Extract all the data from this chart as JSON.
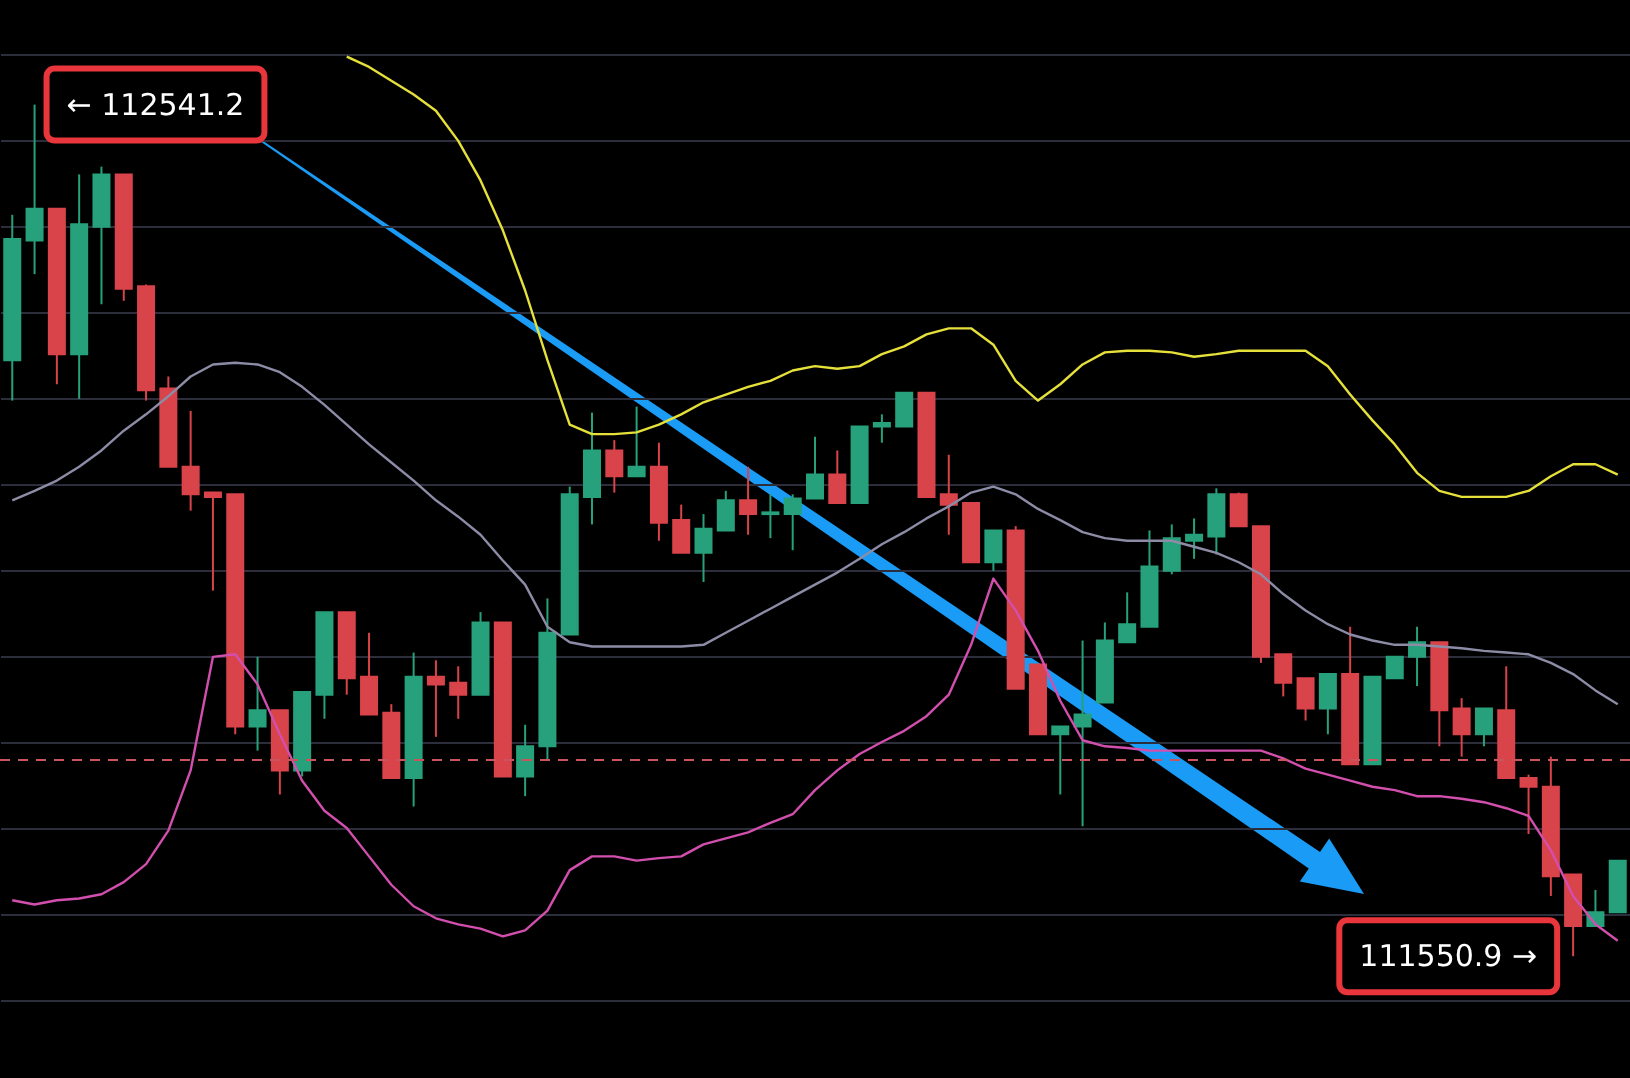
{
  "chart_data": {
    "type": "candlestick",
    "categories": [
      null,
      null,
      null,
      null,
      null,
      null,
      null,
      null,
      null,
      null,
      null,
      null,
      null,
      null,
      null,
      null,
      null,
      null,
      null,
      null,
      null,
      null,
      null,
      null,
      null,
      null,
      null,
      null,
      null,
      null,
      null,
      null,
      null,
      null,
      null,
      null,
      null,
      null,
      null,
      null,
      null,
      null,
      null,
      null,
      null,
      null,
      null,
      null,
      null,
      null,
      null,
      null,
      null,
      null,
      null,
      null,
      null,
      null,
      null,
      null,
      null,
      null,
      null,
      null,
      null,
      null,
      null,
      null,
      null,
      null,
      null,
      null,
      null
    ],
    "ohlc": [
      [
        112244,
        112413,
        112197,
        112385
      ],
      [
        112383,
        112541.2,
        112344,
        112420
      ],
      [
        112420,
        112420,
        112216,
        112251
      ],
      [
        112251,
        112460,
        112199,
        112402
      ],
      [
        112399,
        112469,
        112309,
        112460
      ],
      [
        112460,
        112460,
        112313,
        112327
      ],
      [
        112330,
        112332,
        112197,
        112209
      ],
      [
        112211,
        112225,
        112120,
        112120
      ],
      [
        112120,
        112185,
        112069,
        112088
      ],
      [
        112090,
        112090,
        111976,
        112085
      ],
      [
        112088,
        112088,
        111809,
        111818
      ],
      [
        111818,
        111899,
        111790,
        111837
      ],
      [
        111837,
        111837,
        111739,
        111767
      ],
      [
        111767,
        111858,
        111760,
        111858
      ],
      [
        111855,
        111951,
        111827,
        111951
      ],
      [
        111951,
        111951,
        111855,
        111874
      ],
      [
        111876,
        111927,
        111832,
        111832
      ],
      [
        111834,
        111844,
        111758,
        111758
      ],
      [
        111758,
        111904,
        111725,
        111876
      ],
      [
        111876,
        111895,
        111806,
        111867
      ],
      [
        111869,
        111888,
        111827,
        111855
      ],
      [
        111855,
        111951,
        111855,
        111939
      ],
      [
        111939,
        111939,
        111760,
        111760
      ],
      [
        111760,
        111820,
        111737,
        111795
      ],
      [
        111795,
        111967,
        111779,
        111927
      ],
      [
        111925,
        112097,
        111925,
        112088
      ],
      [
        112085,
        112183,
        112053,
        112139
      ],
      [
        112139,
        112151,
        112090,
        112109
      ],
      [
        112109,
        112190,
        112109,
        112120
      ],
      [
        112120,
        112148,
        112034,
        112055
      ],
      [
        112058,
        112076,
        112020,
        112020
      ],
      [
        112020,
        112065,
        111986,
        112048
      ],
      [
        112046,
        112092,
        112046,
        112081
      ],
      [
        112081,
        112120,
        112041,
        112065
      ],
      [
        112065,
        112088,
        112037,
        112067
      ],
      [
        112065,
        112088,
        112023,
        112083
      ],
      [
        112083,
        112155,
        112083,
        112111
      ],
      [
        112111,
        112139,
        112078,
        112078
      ],
      [
        112078,
        112167,
        112078,
        112167
      ],
      [
        112167,
        112181,
        112148,
        112171
      ],
      [
        112167,
        112206,
        112167,
        112206
      ],
      [
        112206,
        112206,
        112085,
        112085
      ],
      [
        112088,
        112134,
        112041,
        112076
      ],
      [
        112078,
        112078,
        112009,
        112009
      ],
      [
        112009,
        112046,
        111999,
        112046
      ],
      [
        112046,
        112051,
        111862,
        111862
      ],
      [
        111890,
        111890,
        111809,
        111809
      ],
      [
        111809,
        111818,
        111739,
        111818
      ],
      [
        111818,
        111918,
        111702,
        111832
      ],
      [
        111846,
        111939,
        111846,
        111918
      ],
      [
        111916,
        111974,
        111916,
        111937
      ],
      [
        111934,
        112046,
        111934,
        112004
      ],
      [
        111999,
        112053,
        111995,
        112037
      ],
      [
        112034,
        112060,
        112013,
        112041
      ],
      [
        112039,
        112095,
        112018,
        112088
      ],
      [
        112088,
        112090,
        112051,
        112051
      ],
      [
        112051,
        112051,
        111892,
        111899
      ],
      [
        111902,
        111902,
        111853,
        111869
      ],
      [
        111874,
        111874,
        111825,
        111839
      ],
      [
        111839,
        111879,
        111809,
        111879
      ],
      [
        111879,
        111934,
        111774,
        111774
      ],
      [
        111774,
        111876,
        111774,
        111876
      ],
      [
        111874,
        111899,
        111874,
        111899
      ],
      [
        111899,
        111934,
        111865,
        111916
      ],
      [
        111916,
        111916,
        111795,
        111837
      ],
      [
        111839,
        111851,
        111783,
        111809
      ],
      [
        111809,
        111839,
        111795,
        111839
      ],
      [
        111837,
        111888,
        111758,
        111758
      ],
      [
        111758,
        111762,
        111693,
        111748
      ],
      [
        111748,
        111783,
        111621,
        111644
      ],
      [
        111646,
        111646,
        111550.9,
        111586
      ],
      [
        111586,
        111628,
        111586,
        111602
      ],
      [
        111602,
        111662,
        111602,
        111662
      ]
    ],
    "series": [
      {
        "type": "line",
        "color": "#e6e03a",
        "values": [
          null,
          null,
          null,
          null,
          null,
          null,
          null,
          null,
          null,
          null,
          null,
          null,
          null,
          null,
          null,
          112597,
          112585,
          112569,
          112553,
          112534,
          112499,
          112453,
          112395,
          112325,
          112244,
          112169,
          112158,
          112158,
          112160,
          112169,
          112181,
          112195,
          112204,
          112213,
          112220,
          112232,
          112237,
          112234,
          112237,
          112251,
          112260,
          112274,
          112281,
          112281,
          112262,
          112220,
          112197,
          112216,
          112239,
          112253,
          112255,
          112255,
          112253,
          112248,
          112251,
          112255,
          112255,
          112255,
          112255,
          112237,
          112204,
          112174,
          112146,
          112113,
          112092,
          112085,
          112085,
          112085,
          112092,
          112109,
          112123,
          112123,
          112111
        ]
      },
      {
        "type": "line",
        "color": "#8c8ca6",
        "values": [
          112081,
          112092,
          112104,
          112120,
          112139,
          112162,
          112181,
          112202,
          112225,
          112239,
          112241,
          112239,
          112230,
          112213,
          112192,
          112169,
          112146,
          112125,
          112104,
          112081,
          112062,
          112041,
          112011,
          111983,
          111934,
          111916,
          111911,
          111911,
          111911,
          111911,
          111911,
          111913,
          111927,
          111941,
          111955,
          111969,
          111983,
          111997,
          112013,
          112030,
          112044,
          112060,
          112074,
          112090,
          112097,
          112088,
          112071,
          112058,
          112044,
          112037,
          112034,
          112034,
          112034,
          112027,
          112020,
          112009,
          111995,
          111972,
          111953,
          111937,
          111925,
          111918,
          111913,
          111913,
          111911,
          111909,
          111906,
          111904,
          111902,
          111892,
          111879,
          111860,
          111844
        ]
      },
      {
        "type": "line",
        "color": "#d24fae",
        "values": [
          111616,
          111611,
          111616,
          111618,
          111623,
          111637,
          111658,
          111697,
          111767,
          111899,
          111902,
          111867,
          111809,
          111755,
          111720,
          111700,
          111667,
          111634,
          111609,
          111595,
          111588,
          111583,
          111574,
          111581,
          111604,
          111651,
          111667,
          111667,
          111662,
          111665,
          111667,
          111681,
          111688,
          111695,
          111706,
          111716,
          111744,
          111767,
          111786,
          111800,
          111813,
          111830,
          111855,
          111913,
          111990,
          111953,
          111906,
          111848,
          111802,
          111795,
          111793,
          111790,
          111790,
          111790,
          111790,
          111790,
          111790,
          111781,
          111769,
          111762,
          111755,
          111748,
          111744,
          111737,
          111737,
          111734,
          111730,
          111723,
          111714,
          111674,
          111621,
          111588,
          111569
        ]
      }
    ],
    "yticks": [
      {
        "value": 111500,
        "label": null
      },
      {
        "value": 111600,
        "label": null
      },
      {
        "value": 111700,
        "label": null
      },
      {
        "value": 111800,
        "label": null
      },
      {
        "value": 111900,
        "label": null
      },
      {
        "value": 112000,
        "label": null
      },
      {
        "value": 112100,
        "label": null
      },
      {
        "value": 112200,
        "label": null
      },
      {
        "value": 112300,
        "label": null
      },
      {
        "value": 112400,
        "label": null
      },
      {
        "value": 112500,
        "label": null
      },
      {
        "value": 112600,
        "label": null
      }
    ],
    "tick_labels": false,
    "grid": "y",
    "ref_lines": [
      {
        "axis": "y",
        "value": 111779,
        "color": "#c9545e",
        "line_style": "dashed"
      }
    ],
    "annotations": [
      "← 112541.2",
      "111550.9 →"
    ]
  }
}
